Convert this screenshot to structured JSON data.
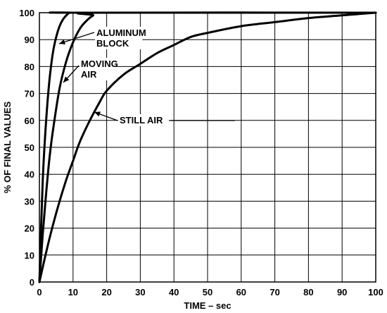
{
  "chart_data": {
    "type": "line",
    "title": "",
    "xlabel": "TIME – sec",
    "ylabel": "% OF FINAL VALUES",
    "xlim": [
      0,
      100
    ],
    "ylim": [
      0,
      100
    ],
    "xticks": [
      0,
      10,
      20,
      30,
      40,
      50,
      60,
      70,
      80,
      90,
      100
    ],
    "yticks": [
      0,
      10,
      20,
      30,
      40,
      50,
      60,
      70,
      80,
      90,
      100
    ],
    "grid": true,
    "series": [
      {
        "name": "ALUMINUM BLOCK",
        "x": [
          0,
          1,
          2,
          3,
          4,
          5,
          6,
          7,
          8,
          9,
          10,
          100
        ],
        "y": [
          0,
          38,
          60,
          75,
          85,
          91,
          95,
          97.5,
          99,
          100,
          100,
          100
        ]
      },
      {
        "name": "MOVING AIR",
        "x": [
          0,
          1,
          2,
          3,
          4,
          6,
          8,
          10,
          12,
          14,
          16,
          18,
          100
        ],
        "y": [
          0,
          18,
          33,
          46,
          56,
          72,
          82,
          89,
          94,
          97,
          99,
          100,
          100
        ]
      },
      {
        "name": "STILL AIR",
        "x": [
          0,
          2,
          4,
          6,
          8,
          10,
          12,
          15,
          18,
          20,
          25,
          30,
          35,
          40,
          45,
          50,
          60,
          70,
          80,
          90,
          100
        ],
        "y": [
          0,
          11,
          21,
          30,
          38,
          45,
          52,
          60,
          67,
          71,
          77,
          81,
          85,
          88,
          91,
          92.5,
          95,
          96.5,
          98,
          99,
          100
        ]
      }
    ],
    "annotations": [
      {
        "lines": [
          "ALUMINUM",
          "BLOCK"
        ],
        "series": "ALUMINUM BLOCK"
      },
      {
        "lines": [
          "MOVING",
          "AIR"
        ],
        "series": "MOVING AIR"
      },
      {
        "lines": [
          "STILL AIR"
        ],
        "series": "STILL AIR"
      }
    ]
  }
}
